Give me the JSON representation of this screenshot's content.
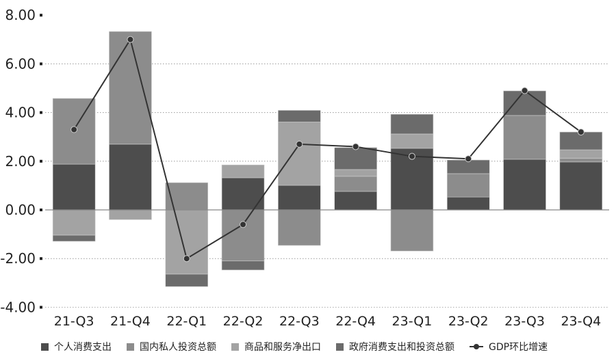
{
  "chart_data": {
    "type": "bar",
    "stacked": true,
    "categories": [
      "21-Q3",
      "21-Q4",
      "22-Q1",
      "22-Q2",
      "22-Q3",
      "22-Q4",
      "23-Q1",
      "23-Q2",
      "23-Q3",
      "23-Q4"
    ],
    "series": [
      {
        "name": "个人消费支出",
        "type": "bar",
        "color": "#4d4d4d",
        "values": [
          1.88,
          2.7,
          0.0,
          1.32,
          1.01,
          0.76,
          2.53,
          0.53,
          2.08,
          1.97
        ]
      },
      {
        "name": "国内私人投资总额",
        "type": "bar",
        "color": "#8c8c8c",
        "values": [
          2.7,
          4.63,
          1.12,
          -2.1,
          -1.46,
          0.62,
          -1.69,
          0.96,
          1.8,
          0.15
        ]
      },
      {
        "name": "商品和服务净出口",
        "type": "bar",
        "color": "#a3a3a3",
        "values": [
          -1.04,
          -0.4,
          -2.64,
          0.53,
          2.6,
          0.28,
          0.59,
          0.0,
          0.0,
          0.35
        ]
      },
      {
        "name": "政府消费支出和投资总额",
        "type": "bar",
        "color": "#6b6b6b",
        "values": [
          -0.25,
          0.0,
          -0.51,
          -0.37,
          0.48,
          0.9,
          0.81,
          0.56,
          1.01,
          0.73
        ]
      },
      {
        "name": "GDP环比增速",
        "type": "line",
        "color": "#333333",
        "values": [
          3.3,
          7.0,
          -2.0,
          -0.6,
          2.7,
          2.6,
          2.2,
          2.1,
          4.9,
          3.2
        ]
      }
    ],
    "yticks": [
      "8.00",
      "6.00",
      "4.00",
      "2.00",
      "0.00",
      "-2.00",
      "-4.00"
    ],
    "ylim": [
      -4,
      8
    ],
    "title": "",
    "xlabel": "",
    "ylabel": "",
    "grid": true,
    "legend_position": "bottom"
  }
}
